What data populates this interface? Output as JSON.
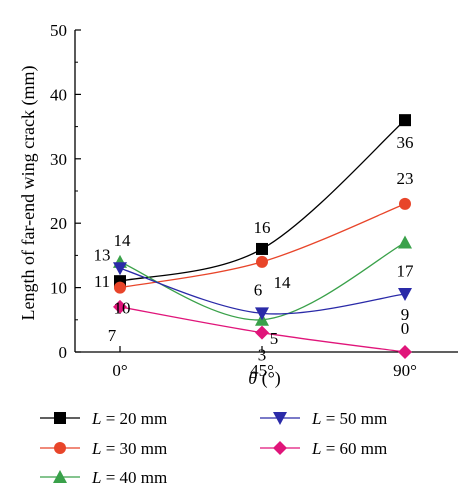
{
  "chart_data": {
    "type": "line",
    "xlabel_symbol": "θ",
    "xlabel_unit": " (°)",
    "ylabel": "Length of far-end wing crack (mm)",
    "categories": [
      "0°",
      "45°",
      "90°"
    ],
    "ylim": [
      0,
      50
    ],
    "yticks": [
      0,
      10,
      20,
      30,
      40,
      50
    ],
    "grid": false,
    "legend_position": "bottom",
    "series": [
      {
        "name": "L = 20 mm",
        "name_var": "L",
        "name_rest": " = 20 mm",
        "values": [
          11,
          16,
          36
        ],
        "labels": [
          "11",
          "16",
          "36"
        ],
        "color": "#000000",
        "marker": "square"
      },
      {
        "name": "L = 30 mm",
        "name_var": "L",
        "name_rest": " = 30 mm",
        "values": [
          10,
          14,
          23
        ],
        "labels": [
          "10",
          "14",
          "23"
        ],
        "color": "#e8452a",
        "marker": "circle"
      },
      {
        "name": "L = 40 mm",
        "name_var": "L",
        "name_rest": " = 40 mm",
        "values": [
          14,
          5,
          17
        ],
        "labels": [
          "14",
          "5",
          "17"
        ],
        "color": "#3aa14a",
        "marker": "triangle-up"
      },
      {
        "name": "L = 50 mm",
        "name_var": "L",
        "name_rest": " = 50 mm",
        "values": [
          13,
          6,
          9
        ],
        "labels": [
          "13",
          "6",
          "9"
        ],
        "color": "#2a2aa8",
        "marker": "triangle-down"
      },
      {
        "name": "L = 60 mm",
        "name_var": "L",
        "name_rest": " = 60 mm",
        "values": [
          7,
          3,
          0
        ],
        "labels": [
          "7",
          "3",
          "0"
        ],
        "color": "#e0157a",
        "marker": "diamond"
      }
    ]
  }
}
